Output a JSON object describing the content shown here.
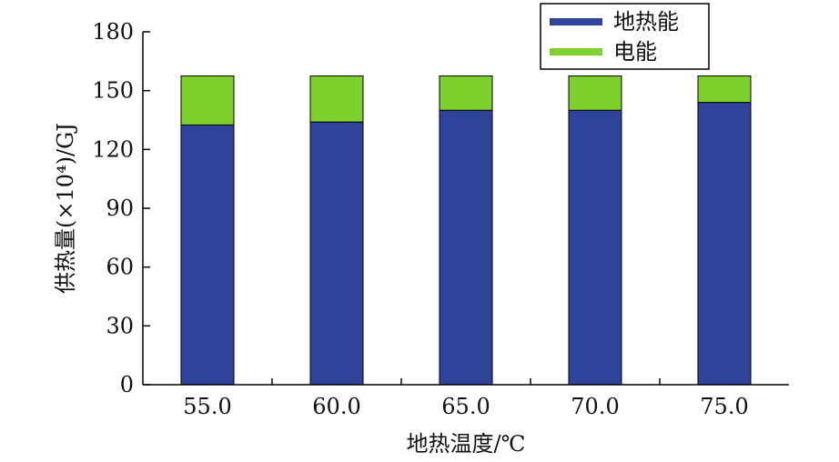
{
  "chart_data": {
    "type": "bar",
    "stacked": true,
    "categories": [
      "55.0",
      "60.0",
      "65.0",
      "70.0",
      "75.0"
    ],
    "series": [
      {
        "name": "地热能",
        "color": "#2E4399",
        "values": [
          132.5,
          134,
          140,
          140,
          144
        ]
      },
      {
        "name": "电能",
        "color": "#7ED12D",
        "values": [
          25,
          23.5,
          17.5,
          17.5,
          13.5
        ]
      }
    ],
    "xlabel": "地热温度/℃",
    "ylabel": "供热量(×10⁴)/GJ",
    "ylim": [
      0,
      180
    ],
    "yticks": [
      0,
      30,
      60,
      90,
      120,
      150,
      180
    ],
    "grid": false,
    "legend": {
      "position": "top-right"
    }
  }
}
